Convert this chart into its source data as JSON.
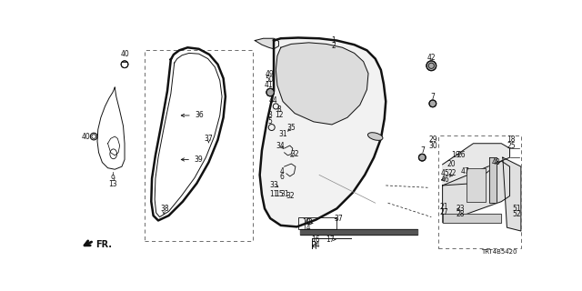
{
  "bg_color": "#ffffff",
  "diagram_code": "TRT4B5420",
  "fig_width": 6.4,
  "fig_height": 3.2,
  "dpi": 100,
  "lw": 0.7,
  "lw_thick": 1.8
}
